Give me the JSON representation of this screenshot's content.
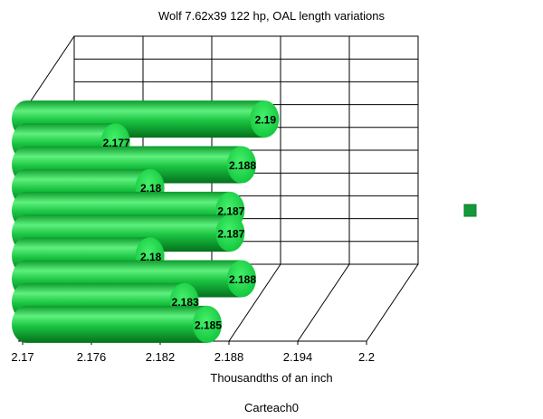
{
  "chart_data": {
    "type": "bar",
    "orientation": "horizontal",
    "style": "3d-cylinder",
    "title": "Wolf 7.62x39 122 hp, OAL length variations",
    "xlabel": "Thousandths of an inch",
    "footer": "Carteach0",
    "xlim": [
      2.17,
      2.2
    ],
    "xticks": [
      "2.17",
      "2.176",
      "2.182",
      "2.188",
      "2.194",
      "2.2"
    ],
    "grid": true,
    "legend": "right",
    "bar_color": "#11b83a",
    "legend_color": "#129a3a",
    "values": [
      2.185,
      2.183,
      2.188,
      2.18,
      2.187,
      2.187,
      2.18,
      2.188,
      2.177,
      2.19
    ]
  }
}
